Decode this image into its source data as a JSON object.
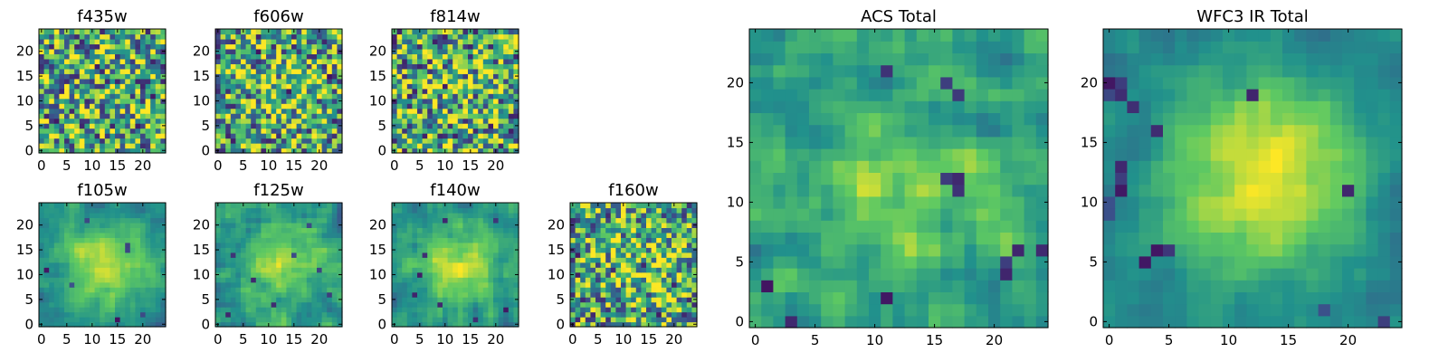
{
  "figure": {
    "colormap": [
      "#440154",
      "#3b528b",
      "#21918c",
      "#5ec962",
      "#fde725"
    ]
  },
  "chart_data": [
    {
      "type": "heatmap",
      "name": "f435w",
      "title": "f435w",
      "xlim": [
        0,
        24
      ],
      "ylim": [
        0,
        24
      ],
      "grid": false,
      "origin": "lower",
      "xticks": [
        0,
        5,
        10,
        15,
        20
      ],
      "yticks": [
        0,
        5,
        10,
        15,
        20
      ],
      "blob": 0.0,
      "noise": 0.85,
      "seed": 11,
      "dark_spots": [
        [
          7,
          15
        ],
        [
          20,
          10
        ],
        [
          3,
          6
        ],
        [
          13,
          3
        ],
        [
          11,
          17
        ],
        [
          22,
          11
        ],
        [
          19,
          5
        ],
        [
          5,
          14
        ]
      ]
    },
    {
      "type": "heatmap",
      "name": "f606w",
      "title": "f606w",
      "xlim": [
        0,
        24
      ],
      "ylim": [
        0,
        24
      ],
      "grid": false,
      "origin": "lower",
      "xticks": [
        0,
        5,
        10,
        15,
        20
      ],
      "yticks": [
        0,
        5,
        10,
        15,
        20
      ],
      "blob": 0.25,
      "noise": 0.8,
      "seed": 23,
      "dark_spots": [
        [
          8,
          20
        ],
        [
          11,
          2
        ],
        [
          14,
          12
        ],
        [
          18,
          22
        ],
        [
          2,
          4
        ],
        [
          22,
          15
        ],
        [
          6,
          11
        ],
        [
          16,
          1
        ]
      ]
    },
    {
      "type": "heatmap",
      "name": "f814w",
      "title": "f814w",
      "xlim": [
        0,
        24
      ],
      "ylim": [
        0,
        24
      ],
      "grid": false,
      "origin": "lower",
      "xticks": [
        0,
        5,
        10,
        15,
        20
      ],
      "yticks": [
        0,
        5,
        10,
        15,
        20
      ],
      "blob": 0.15,
      "noise": 0.85,
      "seed": 37,
      "dark_spots": [
        [
          12,
          3
        ],
        [
          5,
          21
        ],
        [
          10,
          13
        ],
        [
          19,
          5
        ],
        [
          23,
          13
        ],
        [
          2,
          18
        ],
        [
          7,
          8
        ],
        [
          20,
          18
        ]
      ]
    },
    {
      "type": "heatmap",
      "name": "f105w",
      "title": "f105w",
      "xlim": [
        0,
        24
      ],
      "ylim": [
        0,
        24
      ],
      "grid": false,
      "origin": "lower",
      "xticks": [
        0,
        5,
        10,
        15,
        20
      ],
      "yticks": [
        0,
        5,
        10,
        15,
        20
      ],
      "blob": 0.65,
      "noise": 0.45,
      "seed": 41,
      "dark_spots": [
        [
          17,
          16
        ],
        [
          17,
          15
        ],
        [
          1,
          11
        ],
        [
          20,
          2
        ],
        [
          15,
          1
        ],
        [
          9,
          21
        ],
        [
          6,
          8
        ]
      ]
    },
    {
      "type": "heatmap",
      "name": "f125w",
      "title": "f125w",
      "xlim": [
        0,
        24
      ],
      "ylim": [
        0,
        24
      ],
      "grid": false,
      "origin": "lower",
      "xticks": [
        0,
        5,
        10,
        15,
        20
      ],
      "yticks": [
        0,
        5,
        10,
        15,
        20
      ],
      "blob": 0.45,
      "noise": 0.6,
      "seed": 53,
      "dark_spots": [
        [
          2,
          2
        ],
        [
          3,
          14
        ],
        [
          15,
          14
        ],
        [
          18,
          20
        ],
        [
          20,
          11
        ],
        [
          11,
          4
        ],
        [
          7,
          9
        ],
        [
          22,
          6
        ]
      ]
    },
    {
      "type": "heatmap",
      "name": "f140w",
      "title": "f140w",
      "xlim": [
        0,
        24
      ],
      "ylim": [
        0,
        24
      ],
      "grid": false,
      "origin": "lower",
      "xticks": [
        0,
        5,
        10,
        15,
        20
      ],
      "yticks": [
        0,
        5,
        10,
        15,
        20
      ],
      "blob": 0.55,
      "noise": 0.55,
      "seed": 67,
      "dark_spots": [
        [
          20,
          21
        ],
        [
          4,
          6
        ],
        [
          9,
          4
        ],
        [
          6,
          14
        ],
        [
          22,
          3
        ],
        [
          5,
          10
        ],
        [
          10,
          21
        ],
        [
          16,
          1
        ]
      ]
    },
    {
      "type": "heatmap",
      "name": "f160w",
      "title": "f160w",
      "xlim": [
        0,
        24
      ],
      "ylim": [
        0,
        24
      ],
      "grid": false,
      "origin": "lower",
      "xticks": [
        0,
        5,
        10,
        15,
        20
      ],
      "yticks": [
        0,
        5,
        10,
        15,
        20
      ],
      "blob": 0.3,
      "noise": 0.75,
      "seed": 79,
      "dark_spots": [
        [
          1,
          10
        ],
        [
          1,
          14
        ],
        [
          3,
          5
        ],
        [
          8,
          11
        ],
        [
          13,
          21
        ],
        [
          15,
          6
        ],
        [
          14,
          12
        ],
        [
          20,
          8
        ],
        [
          10,
          18
        ],
        [
          17,
          2
        ],
        [
          23,
          16
        ]
      ]
    },
    {
      "type": "heatmap",
      "name": "acs-total",
      "title": "ACS Total",
      "xlim": [
        0,
        24
      ],
      "ylim": [
        0,
        24
      ],
      "grid": false,
      "origin": "lower",
      "xticks": [
        0,
        5,
        10,
        15,
        20
      ],
      "yticks": [
        0,
        5,
        10,
        15,
        20
      ],
      "blob": 0.35,
      "noise": 0.65,
      "seed": 97,
      "dark_spots": [
        [
          17,
          12
        ],
        [
          17,
          11
        ],
        [
          16,
          12
        ],
        [
          21,
          4
        ],
        [
          21,
          5
        ],
        [
          3,
          0
        ],
        [
          1,
          3
        ],
        [
          22,
          6
        ],
        [
          24,
          6
        ],
        [
          11,
          2
        ],
        [
          17,
          19
        ],
        [
          16,
          20
        ],
        [
          11,
          21
        ]
      ]
    },
    {
      "type": "heatmap",
      "name": "wfc3-ir-total",
      "title": "WFC3 IR Total",
      "xlim": [
        0,
        24
      ],
      "ylim": [
        0,
        24
      ],
      "grid": false,
      "origin": "lower",
      "xticks": [
        0,
        5,
        10,
        15,
        20
      ],
      "yticks": [
        0,
        5,
        10,
        15,
        20
      ],
      "blob": 0.8,
      "noise": 0.35,
      "seed": 113,
      "dark_spots": [
        [
          0,
          19
        ],
        [
          0,
          20
        ],
        [
          1,
          20
        ],
        [
          1,
          19
        ],
        [
          1,
          13
        ],
        [
          1,
          12
        ],
        [
          1,
          11
        ],
        [
          0,
          9
        ],
        [
          0,
          10
        ],
        [
          4,
          6
        ],
        [
          5,
          6
        ],
        [
          3,
          5
        ],
        [
          4,
          16
        ],
        [
          2,
          18
        ],
        [
          12,
          19
        ],
        [
          23,
          0
        ],
        [
          18,
          1
        ],
        [
          20,
          11
        ]
      ]
    }
  ]
}
